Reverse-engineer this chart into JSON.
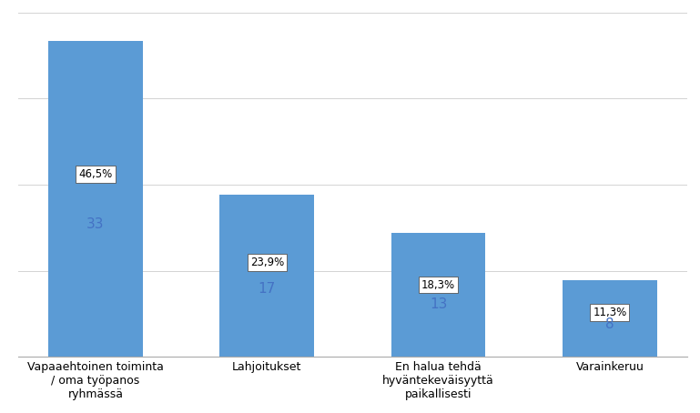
{
  "categories": [
    "Vapaaehtoinen toiminta\n/ oma työpanos\nryhmässä",
    "Lahjoitukset",
    "En halua tehdä\nhyväntekeväisyyttä\npaikallisesti",
    "Varainkeruu"
  ],
  "values": [
    33,
    17,
    13,
    8
  ],
  "percentages": [
    "46,5%",
    "23,9%",
    "18,3%",
    "11,3%"
  ],
  "bar_color": "#5B9BD5",
  "background_color": "#ffffff",
  "grid_color": "#d3d3d3",
  "ylim": [
    0,
    36
  ],
  "label_fontsize": 9,
  "tick_fontsize": 9,
  "annotation_fontsize": 8.5,
  "count_fontsize": 11,
  "count_color": "#4472C4"
}
